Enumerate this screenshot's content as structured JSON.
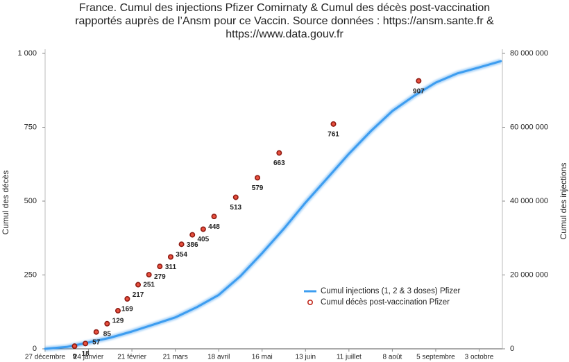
{
  "chart_data": {
    "type": "combo",
    "title": [
      "France. Cumul des injections Pfizer Comirnaty & Cumul des décès post-vaccination",
      "rapportés auprès de l’Ansm pour ce Vaccin. Source données : https://ansm.sante.fr &",
      "https://www.data.gouv.fr"
    ],
    "y_label": "Cumul des décès",
    "y2_label": "Cumul des injections",
    "xticks": [
      "27 décembre",
      "24 janvier",
      "21 février",
      "21 mars",
      "18 avril",
      "16 mai",
      "13 juin",
      "11 juillet",
      "8 août",
      "5 septembre",
      "3 octobre"
    ],
    "xlim": [
      "27 décembre",
      "18 octobre"
    ],
    "ylim": [
      0,
      1000
    ],
    "yticks": [
      0,
      250,
      500,
      750,
      {
        "value": 1000,
        "label": "1 000"
      }
    ],
    "y2lim": [
      0,
      80000000
    ],
    "y2ticks": [
      0,
      {
        "value": 20000000,
        "label": "20 000 000"
      },
      {
        "value": 40000000,
        "label": "40 000 000"
      },
      {
        "value": 60000000,
        "label": "60 000 000"
      },
      {
        "value": 80000000,
        "label": "80 000 000"
      }
    ],
    "legend": "lower right",
    "series": [
      {
        "name": "Cumul injections (1, 2 & 3 doses) Pfizer",
        "type": "line",
        "axis": "y2",
        "color": "#3d9df0",
        "x": [
          "27 décembre",
          "10 janvier",
          "24 janvier",
          "7 février",
          "21 février",
          "7 mars",
          "21 mars",
          "4 avril",
          "18 avril",
          "2 mai",
          "16 mai",
          "30 mai",
          "13 juin",
          "27 juin",
          "11 juillet",
          "25 juillet",
          "8 août",
          "22 août",
          "5 septembre",
          "19 septembre",
          "3 octobre",
          "17 octobre"
        ],
        "values": [
          0,
          500000,
          1700000,
          3000000,
          4700000,
          6600000,
          8500000,
          11300000,
          14600000,
          19700000,
          25900000,
          32500000,
          39600000,
          46200000,
          52800000,
          58900000,
          64400000,
          68500000,
          72100000,
          74600000,
          76200000,
          77900000
        ]
      },
      {
        "name": "Cumul décès post-vaccination Pfizer",
        "type": "scatter",
        "color": "#c0281c",
        "x": [
          "15 janvier",
          "22 janvier",
          "29 janvier",
          "5 février",
          "12 février",
          "18 février",
          "25 février",
          "4 mars",
          "11 mars",
          "18 mars",
          "25 mars",
          "1 avril",
          "8 avril",
          "15 avril",
          "29 avril",
          "13 mai",
          "27 mai",
          "1 juillet",
          "25 août"
        ],
        "values": [
          9,
          18,
          57,
          85,
          129,
          169,
          217,
          251,
          279,
          311,
          354,
          386,
          405,
          448,
          513,
          579,
          663,
          761,
          907
        ]
      }
    ]
  }
}
